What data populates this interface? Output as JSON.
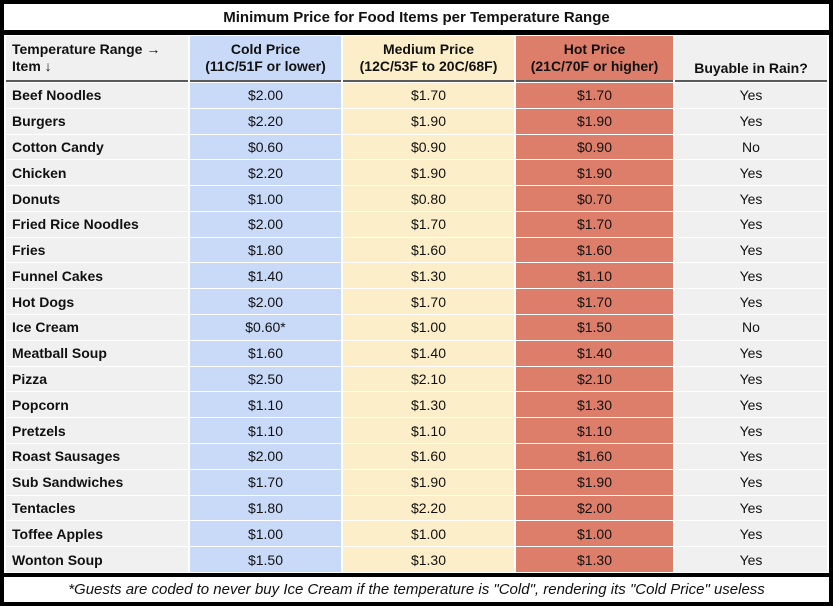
{
  "title": "Minimum Price for Food Items per Temperature Range",
  "colors": {
    "cold": "#c9daf8",
    "medium": "#fbeec9",
    "hot": "#dd7e6b",
    "neutral": "#f0f0f0",
    "frame": "#000000"
  },
  "table": {
    "headers": {
      "item_line1": "Temperature Range →",
      "item_line2": "Item ↓",
      "cold_line1": "Cold Price",
      "cold_line2": "(11C/51F or lower)",
      "medium_line1": "Medium Price",
      "medium_line2": "(12C/53F to 20C/68F)",
      "hot_line1": "Hot Price",
      "hot_line2": "(21C/70F or higher)",
      "rain": "Buyable in Rain?"
    },
    "rows": [
      {
        "item": "Beef Noodles",
        "cold": "$2.00",
        "medium": "$1.70",
        "hot": "$1.70",
        "rain": "Yes"
      },
      {
        "item": "Burgers",
        "cold": "$2.20",
        "medium": "$1.90",
        "hot": "$1.90",
        "rain": "Yes"
      },
      {
        "item": "Cotton Candy",
        "cold": "$0.60",
        "medium": "$0.90",
        "hot": "$0.90",
        "rain": "No"
      },
      {
        "item": "Chicken",
        "cold": "$2.20",
        "medium": "$1.90",
        "hot": "$1.90",
        "rain": "Yes"
      },
      {
        "item": "Donuts",
        "cold": "$1.00",
        "medium": "$0.80",
        "hot": "$0.70",
        "rain": "Yes"
      },
      {
        "item": "Fried Rice Noodles",
        "cold": "$2.00",
        "medium": "$1.70",
        "hot": "$1.70",
        "rain": "Yes"
      },
      {
        "item": "Fries",
        "cold": "$1.80",
        "medium": "$1.60",
        "hot": "$1.60",
        "rain": "Yes"
      },
      {
        "item": "Funnel Cakes",
        "cold": "$1.40",
        "medium": "$1.30",
        "hot": "$1.10",
        "rain": "Yes"
      },
      {
        "item": "Hot Dogs",
        "cold": "$2.00",
        "medium": "$1.70",
        "hot": "$1.70",
        "rain": "Yes"
      },
      {
        "item": "Ice Cream",
        "cold": "$0.60*",
        "medium": "$1.00",
        "hot": "$1.50",
        "rain": "No"
      },
      {
        "item": "Meatball Soup",
        "cold": "$1.60",
        "medium": "$1.40",
        "hot": "$1.40",
        "rain": "Yes"
      },
      {
        "item": "Pizza",
        "cold": "$2.50",
        "medium": "$2.10",
        "hot": "$2.10",
        "rain": "Yes"
      },
      {
        "item": "Popcorn",
        "cold": "$1.10",
        "medium": "$1.30",
        "hot": "$1.30",
        "rain": "Yes"
      },
      {
        "item": "Pretzels",
        "cold": "$1.10",
        "medium": "$1.10",
        "hot": "$1.10",
        "rain": "Yes"
      },
      {
        "item": "Roast Sausages",
        "cold": "$2.00",
        "medium": "$1.60",
        "hot": "$1.60",
        "rain": "Yes"
      },
      {
        "item": "Sub Sandwiches",
        "cold": "$1.70",
        "medium": "$1.90",
        "hot": "$1.90",
        "rain": "Yes"
      },
      {
        "item": "Tentacles",
        "cold": "$1.80",
        "medium": "$2.20",
        "hot": "$2.00",
        "rain": "Yes"
      },
      {
        "item": "Toffee Apples",
        "cold": "$1.00",
        "medium": "$1.00",
        "hot": "$1.00",
        "rain": "Yes"
      },
      {
        "item": "Wonton Soup",
        "cold": "$1.50",
        "medium": "$1.30",
        "hot": "$1.30",
        "rain": "Yes"
      }
    ]
  },
  "footnote": "*Guests are coded to never buy Ice Cream if the temperature is \"Cold\", rendering its \"Cold Price\" useless",
  "chart_data": {
    "type": "table",
    "title": "Minimum Price for Food Items per Temperature Range",
    "columns": [
      "Item",
      "Cold Price (11C/51F or lower)",
      "Medium Price (12C/53F to 20C/68F)",
      "Hot Price (21C/70F or higher)",
      "Buyable in Rain?"
    ],
    "rows": [
      [
        "Beef Noodles",
        2.0,
        1.7,
        1.7,
        "Yes"
      ],
      [
        "Burgers",
        2.2,
        1.9,
        1.9,
        "Yes"
      ],
      [
        "Cotton Candy",
        0.6,
        0.9,
        0.9,
        "No"
      ],
      [
        "Chicken",
        2.2,
        1.9,
        1.9,
        "Yes"
      ],
      [
        "Donuts",
        1.0,
        0.8,
        0.7,
        "Yes"
      ],
      [
        "Fried Rice Noodles",
        2.0,
        1.7,
        1.7,
        "Yes"
      ],
      [
        "Fries",
        1.8,
        1.6,
        1.6,
        "Yes"
      ],
      [
        "Funnel Cakes",
        1.4,
        1.3,
        1.1,
        "Yes"
      ],
      [
        "Hot Dogs",
        2.0,
        1.7,
        1.7,
        "Yes"
      ],
      [
        "Ice Cream",
        0.6,
        1.0,
        1.5,
        "No"
      ],
      [
        "Meatball Soup",
        1.6,
        1.4,
        1.4,
        "Yes"
      ],
      [
        "Pizza",
        2.5,
        2.1,
        2.1,
        "Yes"
      ],
      [
        "Popcorn",
        1.1,
        1.3,
        1.3,
        "Yes"
      ],
      [
        "Pretzels",
        1.1,
        1.1,
        1.1,
        "Yes"
      ],
      [
        "Roast Sausages",
        2.0,
        1.6,
        1.6,
        "Yes"
      ],
      [
        "Sub Sandwiches",
        1.7,
        1.9,
        1.9,
        "Yes"
      ],
      [
        "Tentacles",
        1.8,
        2.2,
        2.0,
        "Yes"
      ],
      [
        "Toffee Apples",
        1.0,
        1.0,
        1.0,
        "Yes"
      ],
      [
        "Wonton Soup",
        1.5,
        1.3,
        1.3,
        "Yes"
      ]
    ],
    "notes": "Ice Cream Cold Price is flagged with * (see footnote)"
  }
}
